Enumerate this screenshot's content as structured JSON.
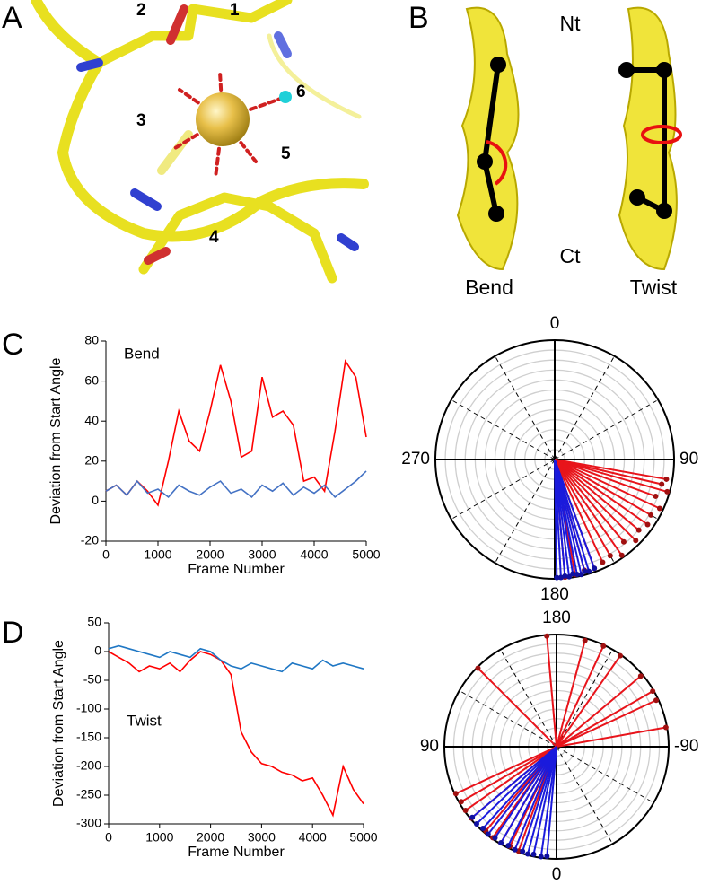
{
  "panels": {
    "letters": [
      "A",
      "B",
      "C",
      "D"
    ],
    "A": {
      "sites": [
        "1",
        "2",
        "3",
        "4",
        "5",
        "6"
      ]
    },
    "B": {
      "top": "Nt",
      "bottom": "Ct",
      "captions": [
        "Bend",
        "Twist"
      ]
    }
  },
  "chart_data": [
    {
      "type": "line",
      "annotation": "Bend",
      "xlabel": "Frame Number",
      "ylabel": "Deviation from Start Angle",
      "x": [
        0,
        200,
        400,
        600,
        800,
        1000,
        1200,
        1400,
        1600,
        1800,
        2000,
        2200,
        2400,
        2600,
        2800,
        3000,
        3200,
        3400,
        3600,
        3800,
        4000,
        4200,
        4400,
        4600,
        4800,
        5000
      ],
      "series": [
        {
          "color": "#ff0000",
          "values": [
            5,
            8,
            3,
            10,
            5,
            -2,
            20,
            45,
            30,
            25,
            45,
            68,
            50,
            22,
            25,
            62,
            42,
            45,
            38,
            10,
            12,
            5,
            35,
            70,
            62,
            32
          ]
        },
        {
          "color": "#4472c4",
          "values": [
            5,
            8,
            3,
            10,
            4,
            6,
            2,
            8,
            5,
            3,
            7,
            10,
            4,
            6,
            2,
            8,
            5,
            9,
            3,
            7,
            4,
            8,
            2,
            6,
            10,
            15
          ]
        }
      ],
      "xlim": [
        0,
        5000
      ],
      "ylim": [
        -20,
        80
      ],
      "xticks": [
        0,
        1000,
        2000,
        3000,
        4000,
        5000
      ],
      "yticks": [
        -20,
        0,
        20,
        40,
        60,
        80
      ]
    },
    {
      "type": "polar",
      "theta_ticks": [
        0,
        90,
        180,
        270
      ],
      "theta_zero": "top",
      "theta_direction": "clockwise",
      "rlim": [
        0,
        1
      ],
      "rings": 12,
      "series": [
        {
          "color": "#e8141b",
          "angles": [
            100,
            103,
            106,
            110,
            115,
            120,
            125,
            130,
            135,
            140,
            145,
            150,
            155,
            160,
            165,
            170,
            175
          ],
          "radii": [
            0.95,
            0.92,
            0.98,
            0.9,
            0.97,
            0.93,
            0.95,
            0.92,
            0.96,
            0.9,
            0.98,
            0.93,
            0.95,
            0.97,
            0.96,
            0.98,
            0.99
          ]
        },
        {
          "color": "#1a1adc",
          "angles": [
            160,
            163,
            165,
            167,
            169,
            171,
            173,
            175,
            177,
            179
          ],
          "radii": [
            0.97,
            0.98,
            0.97,
            0.99,
            0.98,
            0.97,
            0.99,
            0.98,
            0.99,
            0.99
          ]
        }
      ]
    },
    {
      "type": "line",
      "annotation": "Twist",
      "xlabel": "Frame Number",
      "ylabel": "Deviation from Start Angle",
      "x": [
        0,
        200,
        400,
        600,
        800,
        1000,
        1200,
        1400,
        1600,
        1800,
        2000,
        2200,
        2400,
        2600,
        2800,
        3000,
        3200,
        3400,
        3600,
        3800,
        4000,
        4200,
        4400,
        4600,
        4800,
        5000
      ],
      "series": [
        {
          "color": "#ff0000",
          "values": [
            0,
            -10,
            -20,
            -35,
            -25,
            -30,
            -20,
            -35,
            -15,
            0,
            -5,
            -15,
            -40,
            -140,
            -175,
            -195,
            -200,
            -210,
            -215,
            -225,
            -220,
            -250,
            -285,
            -200,
            -240,
            -265
          ]
        },
        {
          "color": "#1f77c4",
          "values": [
            5,
            10,
            5,
            0,
            -5,
            -10,
            0,
            -5,
            -10,
            5,
            0,
            -15,
            -25,
            -30,
            -20,
            -25,
            -30,
            -35,
            -20,
            -25,
            -30,
            -15,
            -25,
            -20,
            -25,
            -30
          ]
        }
      ],
      "xlim": [
        0,
        5000
      ],
      "ylim": [
        -300,
        50
      ],
      "xticks": [
        0,
        1000,
        2000,
        3000,
        4000,
        5000
      ],
      "yticks": [
        50,
        0,
        -50,
        -100,
        -150,
        -200,
        -250,
        -300
      ]
    },
    {
      "type": "polar",
      "theta_ticks": [
        180,
        -90,
        0,
        90
      ],
      "theta_zero": "bottom",
      "theta_direction": "clockwise",
      "rlim": [
        0,
        1
      ],
      "rings": 12,
      "series": [
        {
          "color": "#e8141b",
          "angles": [
            135,
            175,
            -165,
            -155,
            -145,
            -130,
            -120,
            -115,
            -100,
            20,
            25,
            30,
            35,
            40,
            50,
            55,
            60,
            65
          ],
          "radii": [
            0.99,
            0.99,
            0.98,
            0.99,
            0.99,
            0.98,
            0.99,
            0.98,
            0.99,
            0.99,
            0.98,
            0.99,
            0.99,
            0.98,
            0.99,
            0.99,
            0.98,
            0.99
          ]
        },
        {
          "color": "#1a1adc",
          "angles": [
            5,
            8,
            12,
            15,
            18,
            22,
            26,
            30,
            34,
            38,
            42,
            46,
            50
          ],
          "radii": [
            0.98,
            0.99,
            0.98,
            0.99,
            0.98,
            0.99,
            0.98,
            0.99,
            0.98,
            0.99,
            0.98,
            0.99,
            0.98
          ]
        }
      ]
    }
  ]
}
